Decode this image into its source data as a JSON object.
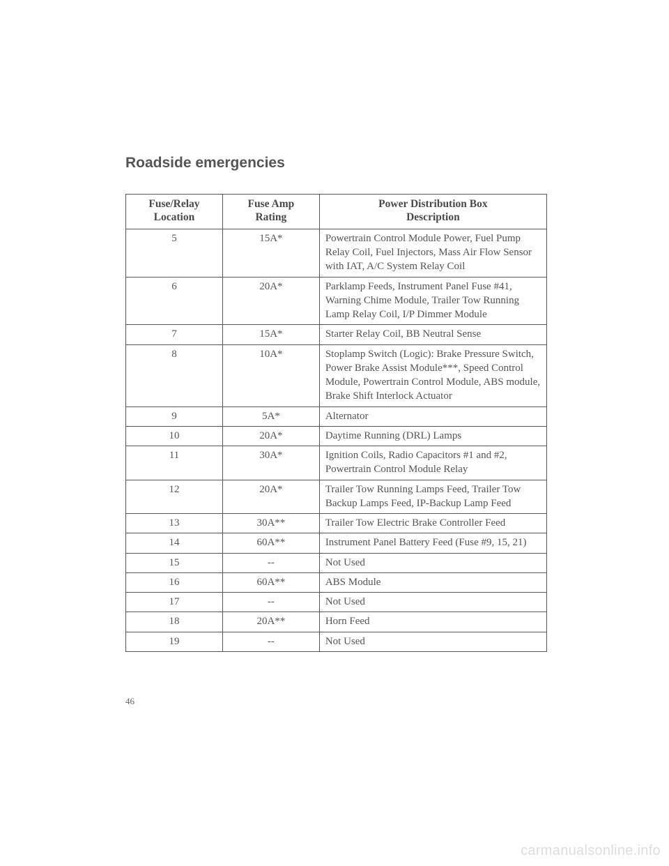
{
  "section_title": "Roadside emergencies",
  "page_number": "46",
  "watermark": "carmanualsonline.info",
  "table": {
    "type": "table",
    "background_color": "#ffffff",
    "border_color": "#555555",
    "text_color": "#4a4a4a",
    "header_fontsize": 15.5,
    "body_fontsize": 15,
    "col_widths_pct": [
      23,
      23,
      54
    ],
    "columns": [
      {
        "line1": "Fuse/Relay",
        "line2": "Location",
        "align": "center"
      },
      {
        "line1": "Fuse Amp",
        "line2": "Rating",
        "align": "center"
      },
      {
        "line1": "Power Distribution Box",
        "line2": "Description",
        "align": "center"
      }
    ],
    "rows": [
      {
        "loc": "5",
        "rating": "15A*",
        "desc": "Powertrain Control Module Power, Fuel Pump Relay Coil, Fuel Injectors, Mass Air Flow Sensor with IAT, A/C System Relay Coil"
      },
      {
        "loc": "6",
        "rating": "20A*",
        "desc": "Parklamp Feeds, Instrument Panel Fuse #41, Warning Chime Module, Trailer Tow Running Lamp Relay Coil, I/P Dimmer Module"
      },
      {
        "loc": "7",
        "rating": "15A*",
        "desc": "Starter Relay Coil, BB Neutral Sense"
      },
      {
        "loc": "8",
        "rating": "10A*",
        "desc": "Stoplamp Switch (Logic): Brake Pressure Switch, Power Brake Assist Module***, Speed Control Module, Powertrain Control Module, ABS module, Brake Shift Interlock Actuator"
      },
      {
        "loc": "9",
        "rating": "5A*",
        "desc": "Alternator"
      },
      {
        "loc": "10",
        "rating": "20A*",
        "desc": "Daytime Running (DRL) Lamps"
      },
      {
        "loc": "11",
        "rating": "30A*",
        "desc": "Ignition Coils, Radio Capacitors #1 and #2, Powertrain Control Module Relay"
      },
      {
        "loc": "12",
        "rating": "20A*",
        "desc": "Trailer Tow Running Lamps Feed, Trailer Tow Backup Lamps Feed, IP-Backup Lamp Feed"
      },
      {
        "loc": "13",
        "rating": "30A**",
        "desc": "Trailer Tow Electric Brake Controller Feed"
      },
      {
        "loc": "14",
        "rating": "60A**",
        "desc": "Instrument Panel Battery Feed (Fuse #9, 15, 21)"
      },
      {
        "loc": "15",
        "rating": "--",
        "desc": "Not Used"
      },
      {
        "loc": "16",
        "rating": "60A**",
        "desc": "ABS Module"
      },
      {
        "loc": "17",
        "rating": "--",
        "desc": "Not Used"
      },
      {
        "loc": "18",
        "rating": "20A**",
        "desc": "Horn Feed"
      },
      {
        "loc": "19",
        "rating": "--",
        "desc": "Not Used"
      }
    ]
  }
}
